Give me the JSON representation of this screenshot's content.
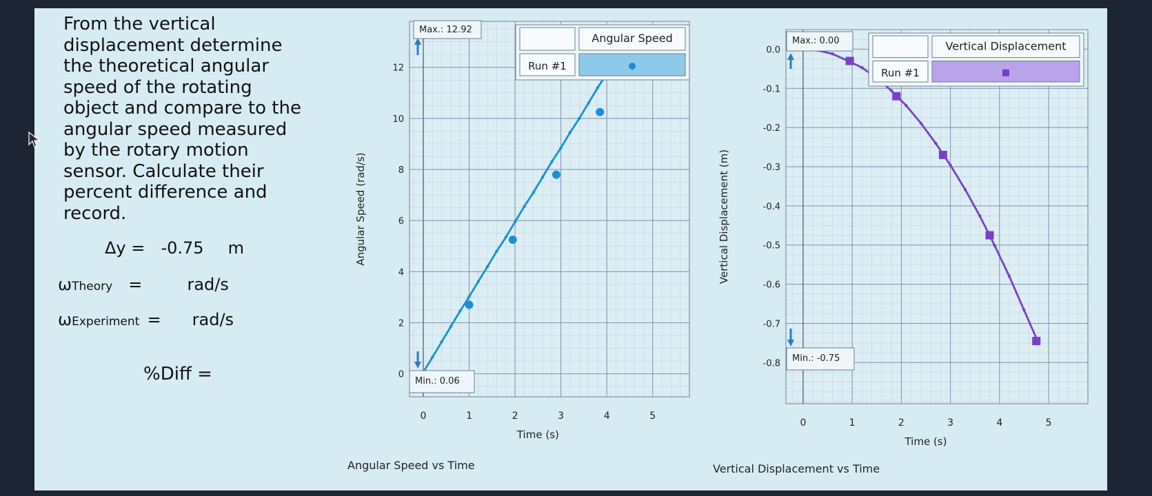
{
  "instruction": "From the vertical displacement determine the theoretical angular speed of the rotating object and compare to the angular speed measured by the rotary motion sensor. Calculate their percent difference and record.",
  "instruction_lines": [
    "From the vertical",
    "displacement determine",
    "the theoretical angular",
    "speed of the rotating",
    "object and compare to the",
    "angular speed measured",
    "by the rotary motion",
    "sensor.  Calculate their",
    "percent difference and",
    "record."
  ],
  "equations": {
    "dy_label": "Δy  =",
    "dy_value": "-0.75",
    "dy_unit": "m",
    "w_theory_symbol": "ω",
    "w_theory_sub": "Theory",
    "w_theory_eq": "=",
    "w_theory_unit": "rad/s",
    "w_exp_symbol": "ω",
    "w_exp_sub": "Experiment",
    "w_exp_eq": "=",
    "w_exp_unit": "rad/s",
    "diff_label": "%Diff ="
  },
  "colors": {
    "screen_bg": "#d7ecf2",
    "grid": "#9fb4c8",
    "series1": "#1b8fd6",
    "series2": "#7a3fc4",
    "legend1_fill": "#8ec9e8",
    "legend2_fill": "#b9a3ea",
    "arrow": "#2a7bc8"
  },
  "chart_data": [
    {
      "type": "line",
      "caption": "Angular Speed vs Time",
      "xlabel": "Time (s)",
      "ylabel": "Angular Speed (rad/s)",
      "xlim": [
        -0.3,
        5.8
      ],
      "ylim": [
        -0.9,
        13.8
      ],
      "xticks": [
        0,
        1,
        2,
        3,
        4,
        5
      ],
      "yticks": [
        0,
        2,
        4,
        6,
        8,
        10,
        12
      ],
      "ytick_labels": [
        "0",
        "2",
        "4",
        "6",
        "8",
        "10",
        "12"
      ],
      "grid": true,
      "max_label": "Max.: 12.92",
      "min_label": "Min.: 0.06",
      "legend": {
        "title": "Angular Speed",
        "run": "Run #1",
        "marker": "circle"
      },
      "series": [
        {
          "name": "Run #1",
          "x": [
            0,
            0.2,
            0.4,
            0.6,
            0.8,
            1.0,
            1.2,
            1.4,
            1.6,
            1.8,
            2.0,
            2.2,
            2.4,
            2.6,
            2.8,
            3.0,
            3.2,
            3.4,
            3.6,
            3.8,
            4.0,
            4.2,
            4.3
          ],
          "y": [
            0.06,
            0.65,
            1.25,
            1.85,
            2.45,
            3.02,
            3.62,
            4.2,
            4.8,
            5.35,
            5.95,
            6.55,
            7.1,
            7.7,
            8.3,
            8.85,
            9.45,
            10.0,
            10.6,
            11.2,
            11.75,
            12.35,
            12.92
          ]
        }
      ],
      "markers": {
        "x": [
          1.0,
          1.95,
          2.9,
          3.85
        ],
        "y": [
          2.7,
          5.25,
          7.8,
          10.25
        ]
      }
    },
    {
      "type": "line",
      "caption": "Vertical Displacement vs Time",
      "xlabel": "Time (s)",
      "ylabel": "Vertical Displacement (m)",
      "xlim": [
        -0.35,
        5.8
      ],
      "ylim": [
        -0.905,
        0.05
      ],
      "xticks": [
        0,
        1,
        2,
        3,
        4,
        5
      ],
      "yticks": [
        0.0,
        -0.1,
        -0.2,
        -0.3,
        -0.4,
        -0.5,
        -0.6,
        -0.7,
        -0.8
      ],
      "ytick_labels": [
        "0.0",
        "-0.1",
        "-0.2",
        "-0.3",
        "-0.4",
        "-0.5",
        "-0.6",
        "-0.7",
        "-0.8"
      ],
      "grid": true,
      "max_label": "Max.: 0.00",
      "min_label": "Min.: -0.75",
      "legend": {
        "title": "Vertical Displacement",
        "run": "Run #1",
        "marker": "square"
      },
      "series": [
        {
          "name": "Run #1",
          "x": [
            0,
            0.3,
            0.6,
            0.9,
            1.2,
            1.5,
            1.8,
            2.1,
            2.4,
            2.7,
            3.0,
            3.3,
            3.6,
            3.9,
            4.2,
            4.5,
            4.8
          ],
          "y": [
            0,
            -0.003,
            -0.012,
            -0.029,
            -0.047,
            -0.074,
            -0.106,
            -0.144,
            -0.189,
            -0.24,
            -0.296,
            -0.358,
            -0.426,
            -0.501,
            -0.58,
            -0.666,
            -0.752
          ]
        }
      ],
      "markers": {
        "x": [
          0.95,
          1.9,
          2.85,
          3.8,
          4.75
        ],
        "y": [
          -0.03,
          -0.12,
          -0.27,
          -0.475,
          -0.745
        ]
      }
    }
  ]
}
